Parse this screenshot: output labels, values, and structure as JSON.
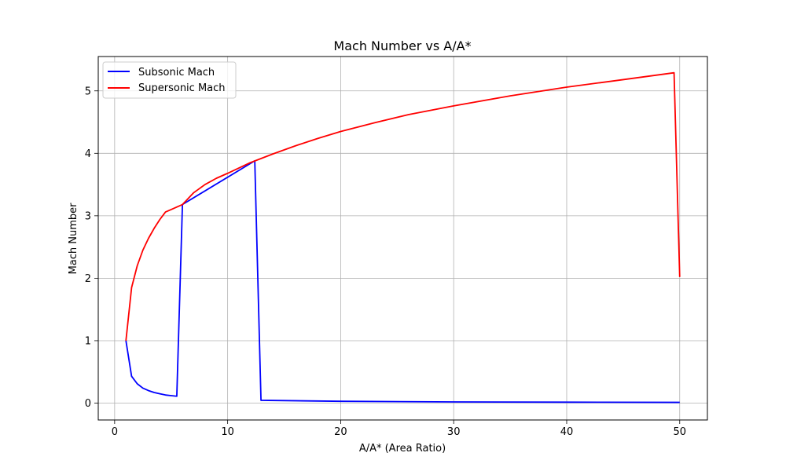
{
  "chart_data": {
    "type": "line",
    "title": "Mach Number vs A/A*",
    "xlabel": "A/A* (Area Ratio)",
    "ylabel": "Mach Number",
    "xlim": [
      -1.45,
      52.45
    ],
    "ylim": [
      -0.27,
      5.55
    ],
    "xticks": [
      0,
      10,
      20,
      30,
      40,
      50
    ],
    "yticks": [
      0,
      1,
      2,
      3,
      4,
      5
    ],
    "grid": true,
    "legend_position": "top-left",
    "series": [
      {
        "name": "Subsonic Mach",
        "color": "#0000ff",
        "points": [
          [
            1.0,
            1.0
          ],
          [
            1.5,
            0.43
          ],
          [
            2.0,
            0.31
          ],
          [
            2.5,
            0.24
          ],
          [
            3.0,
            0.2
          ],
          [
            3.5,
            0.17
          ],
          [
            4.0,
            0.15
          ],
          [
            4.5,
            0.13
          ],
          [
            5.0,
            0.12
          ],
          [
            5.5,
            0.11
          ],
          [
            6.0,
            3.18
          ],
          [
            12.4,
            3.88
          ],
          [
            12.95,
            0.045
          ],
          [
            20.0,
            0.029
          ],
          [
            30.0,
            0.019
          ],
          [
            40.0,
            0.015
          ],
          [
            50.0,
            0.012
          ]
        ]
      },
      {
        "name": "Supersonic Mach",
        "color": "#ff0000",
        "points": [
          [
            1.0,
            1.0
          ],
          [
            1.5,
            1.85
          ],
          [
            2.0,
            2.2
          ],
          [
            2.5,
            2.45
          ],
          [
            3.0,
            2.64
          ],
          [
            3.5,
            2.8
          ],
          [
            4.0,
            2.94
          ],
          [
            4.5,
            3.06
          ],
          [
            5.0,
            3.1
          ],
          [
            6.0,
            3.18
          ],
          [
            7.0,
            3.37
          ],
          [
            8.0,
            3.5
          ],
          [
            9.0,
            3.6
          ],
          [
            10.0,
            3.68
          ],
          [
            12.0,
            3.85
          ],
          [
            14.0,
            3.99
          ],
          [
            16.0,
            4.12
          ],
          [
            18.0,
            4.24
          ],
          [
            20.0,
            4.35
          ],
          [
            23.0,
            4.49
          ],
          [
            26.0,
            4.62
          ],
          [
            30.0,
            4.76
          ],
          [
            35.0,
            4.92
          ],
          [
            40.0,
            5.06
          ],
          [
            45.0,
            5.18
          ],
          [
            49.5,
            5.29
          ],
          [
            50.0,
            2.02
          ]
        ]
      }
    ]
  }
}
